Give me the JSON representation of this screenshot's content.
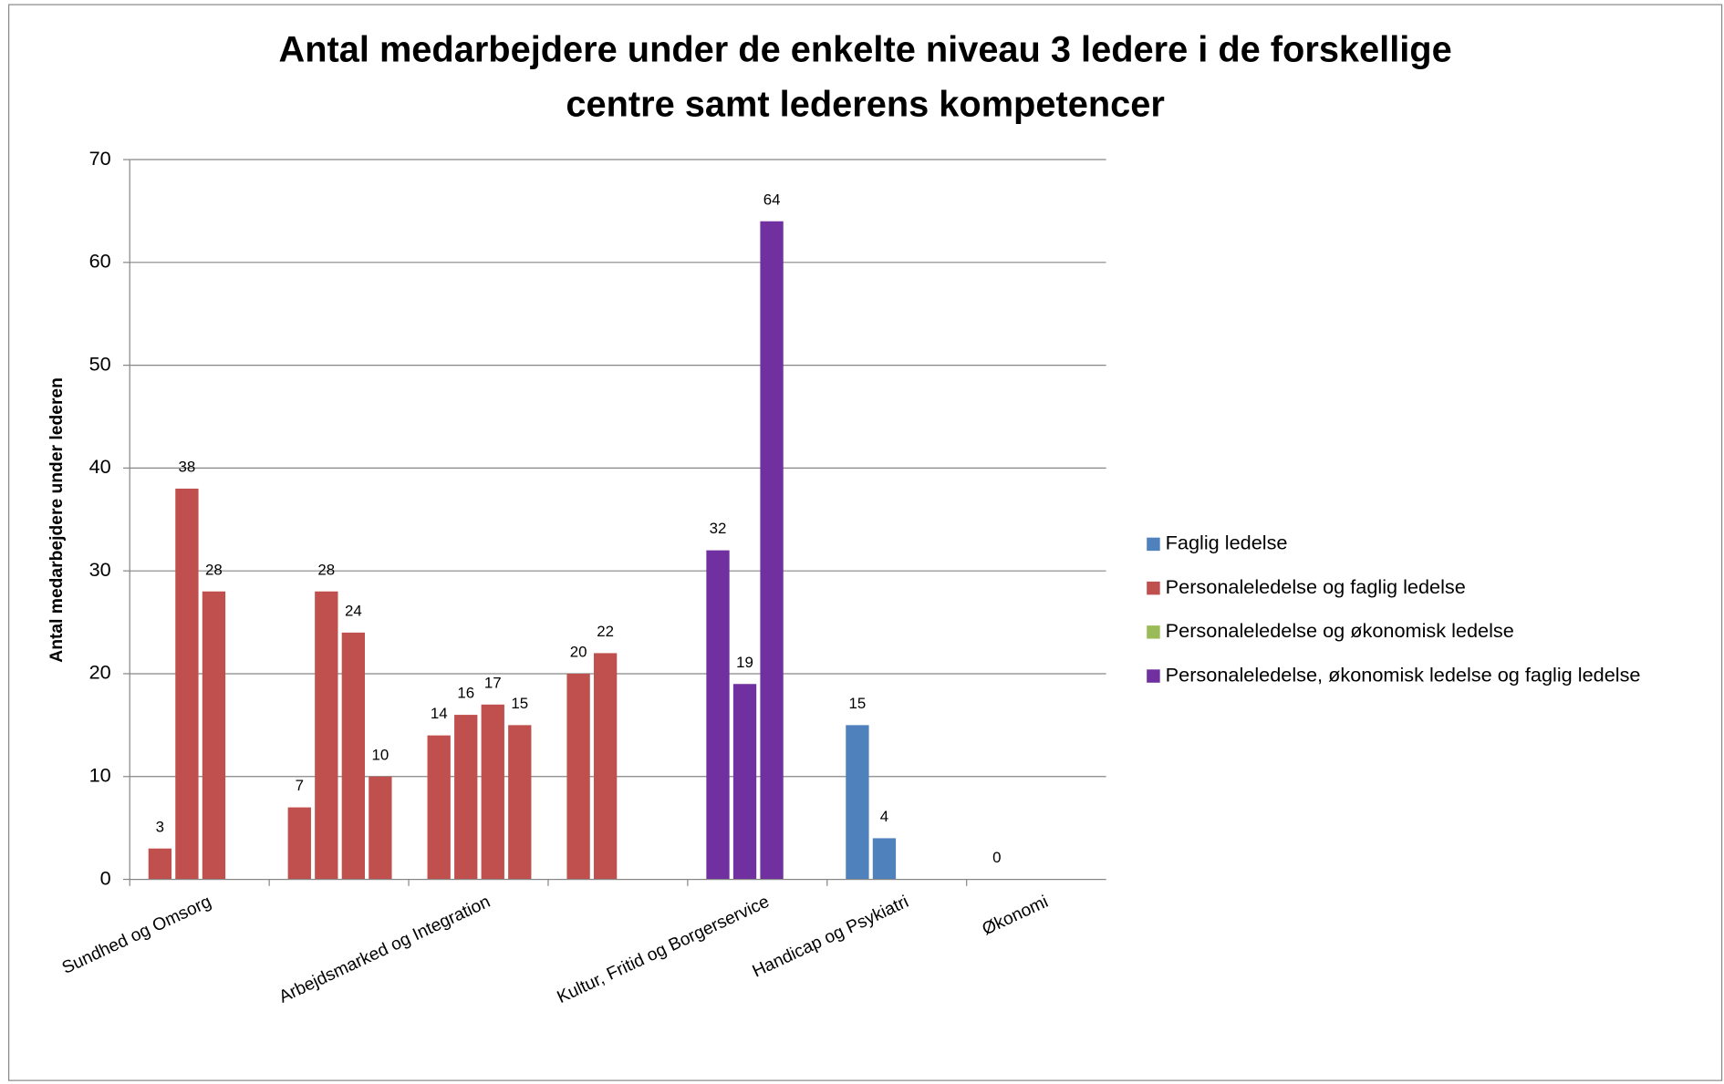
{
  "chart_data": {
    "type": "bar",
    "title": [
      "Antal medarbejdere under de enkelte niveau 3 ledere i de forskellige",
      "centre samt lederens kompetencer"
    ],
    "y_label": "Antal medarbejdere under lederen",
    "categories": [
      "Sundhed og Omsorg",
      null,
      "Arbejdsmarked og Integration",
      null,
      "Kultur, Fritid og Borgerservice",
      "Handicap og Psykiatri",
      "Økonomi"
    ],
    "series": [
      {
        "name": "Faglig ledelse",
        "color": "#4f81bd"
      },
      {
        "name": "Personaleledelse og faglig ledelse",
        "color": "#c0504d"
      },
      {
        "name": "Personaleledelse og økonomisk ledelse",
        "color": "#9bbb59"
      },
      {
        "name": "Personaleledelse, økonomisk ledelse og faglig ledelse",
        "color": "#7030a0"
      }
    ],
    "groups": [
      [
        {
          "value": 3,
          "series": 1
        },
        {
          "value": 38,
          "series": 1
        },
        {
          "value": 28,
          "series": 1
        }
      ],
      [
        {
          "value": 7,
          "series": 1
        },
        {
          "value": 28,
          "series": 1
        },
        {
          "value": 24,
          "series": 1
        },
        {
          "value": 10,
          "series": 1
        }
      ],
      [
        {
          "value": 14,
          "series": 1
        },
        {
          "value": 16,
          "series": 1
        },
        {
          "value": 17,
          "series": 1
        },
        {
          "value": 15,
          "series": 1
        }
      ],
      [
        {
          "value": 20,
          "series": 1
        },
        {
          "value": 22,
          "series": 1
        }
      ],
      [
        {
          "value": 32,
          "series": 3
        },
        {
          "value": 19,
          "series": 3
        },
        {
          "value": 64,
          "series": 3
        }
      ],
      [
        {
          "value": 15,
          "series": 0
        },
        {
          "value": 4,
          "series": 0
        }
      ],
      [
        {
          "value": 0,
          "series": 2
        }
      ]
    ],
    "ylim": [
      0,
      70
    ],
    "yticks": [
      0,
      10,
      20,
      30,
      40,
      50,
      60,
      70
    ],
    "grid": true,
    "legend": "right"
  }
}
